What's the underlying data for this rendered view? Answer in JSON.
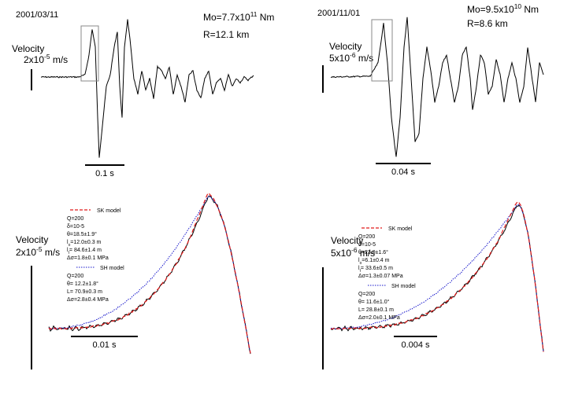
{
  "panels": [
    {
      "date": "2001/03/11",
      "moment": [
        "Mo=7.7x10",
        "11",
        " Nm"
      ],
      "distance": "R=12.1 km",
      "amplitude_label": "Velocity",
      "amplitude_scale": [
        "2x10",
        "-5",
        " m/s"
      ],
      "time_scale": "0.1 s"
    },
    {
      "date": "2001/11/01",
      "moment": [
        "Mo=9.5x10",
        "10",
        " Nm"
      ],
      "distance": "R=8.6 km",
      "amplitude_label": "Velocity",
      "amplitude_scale": [
        "5x10",
        "-6",
        " m/s"
      ],
      "time_scale": "0.04 s"
    }
  ],
  "fits": [
    {
      "amplitude_label": "Velocity",
      "amplitude_scale": [
        "2x10",
        "-5",
        " m/s"
      ],
      "time_scale": "0.01 s",
      "sk": {
        "name": "SK model",
        "lines": [
          [
            "Q=200"
          ],
          [
            "δ=10",
            "-5"
          ],
          [
            "θ=18.5±1.9°"
          ],
          [
            "l",
            "0",
            "=12.0±0.3 m"
          ],
          [
            "l",
            "f",
            "= 84.6±1.4 m"
          ],
          [
            "Δσ=1.8±0.1 MPa"
          ]
        ]
      },
      "sh": {
        "name": "SH model",
        "lines": [
          [
            "Q=200"
          ],
          [
            "θ= 12.2±1.8°"
          ],
          [
            "L= 70.9±0.3 m"
          ],
          [
            "Δσ=2.8±0.4 MPa"
          ]
        ]
      }
    },
    {
      "amplitude_label": "Velocity",
      "amplitude_scale": [
        "5x10",
        "-6",
        " m/s"
      ],
      "time_scale": "0.004 s",
      "sk": {
        "name": "SK model",
        "lines": [
          [
            "Q=200"
          ],
          [
            "δ=10",
            "-5"
          ],
          [
            "θ=23.0±1.6°"
          ],
          [
            "l",
            "0",
            "=6.1±0.4 m"
          ],
          [
            "l",
            "f",
            "= 33.6±0.5 m"
          ],
          [
            "Δσ=1.3±0.07 MPa"
          ]
        ]
      },
      "sh": {
        "name": "SH model",
        "lines": [
          [
            "Q=200"
          ],
          [
            "θ= 11.6±1.0°"
          ],
          [
            "L= 28.8±0.1 m"
          ],
          [
            "Δσ=2.0±0.1 MPa"
          ]
        ]
      }
    }
  ]
}
